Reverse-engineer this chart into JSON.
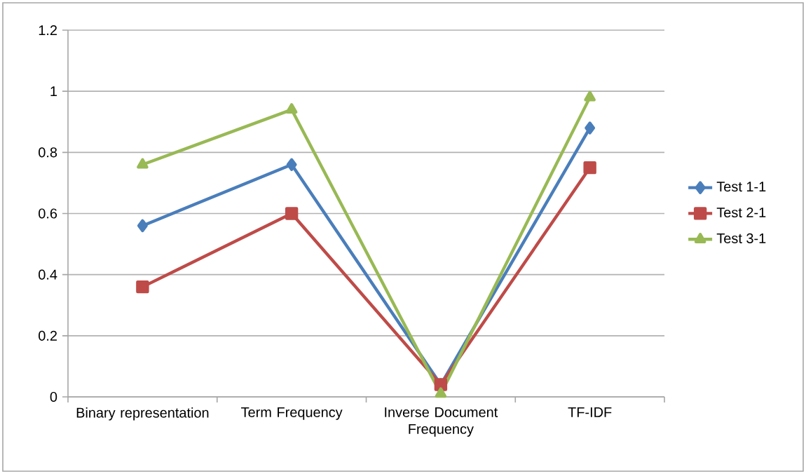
{
  "chart_data": {
    "type": "line",
    "categories": [
      "Binary representation",
      "Term Frequency",
      "Inverse Document Frequency",
      "TF-IDF"
    ],
    "series": [
      {
        "name": "Test 1-1",
        "color": "#4a7ebb",
        "marker": "diamond",
        "values": [
          0.56,
          0.76,
          0.04,
          0.88
        ]
      },
      {
        "name": "Test 2-1",
        "color": "#be4b48",
        "marker": "square",
        "values": [
          0.36,
          0.6,
          0.04,
          0.75
        ]
      },
      {
        "name": "Test 3-1",
        "color": "#98b954",
        "marker": "triangle",
        "values": [
          0.76,
          0.94,
          0.01,
          0.98
        ]
      }
    ],
    "ylim": [
      0,
      1.2
    ],
    "yticks": [
      0,
      0.2,
      0.4,
      0.6,
      0.8,
      1,
      1.2
    ],
    "grid": "y",
    "legend": "right"
  }
}
